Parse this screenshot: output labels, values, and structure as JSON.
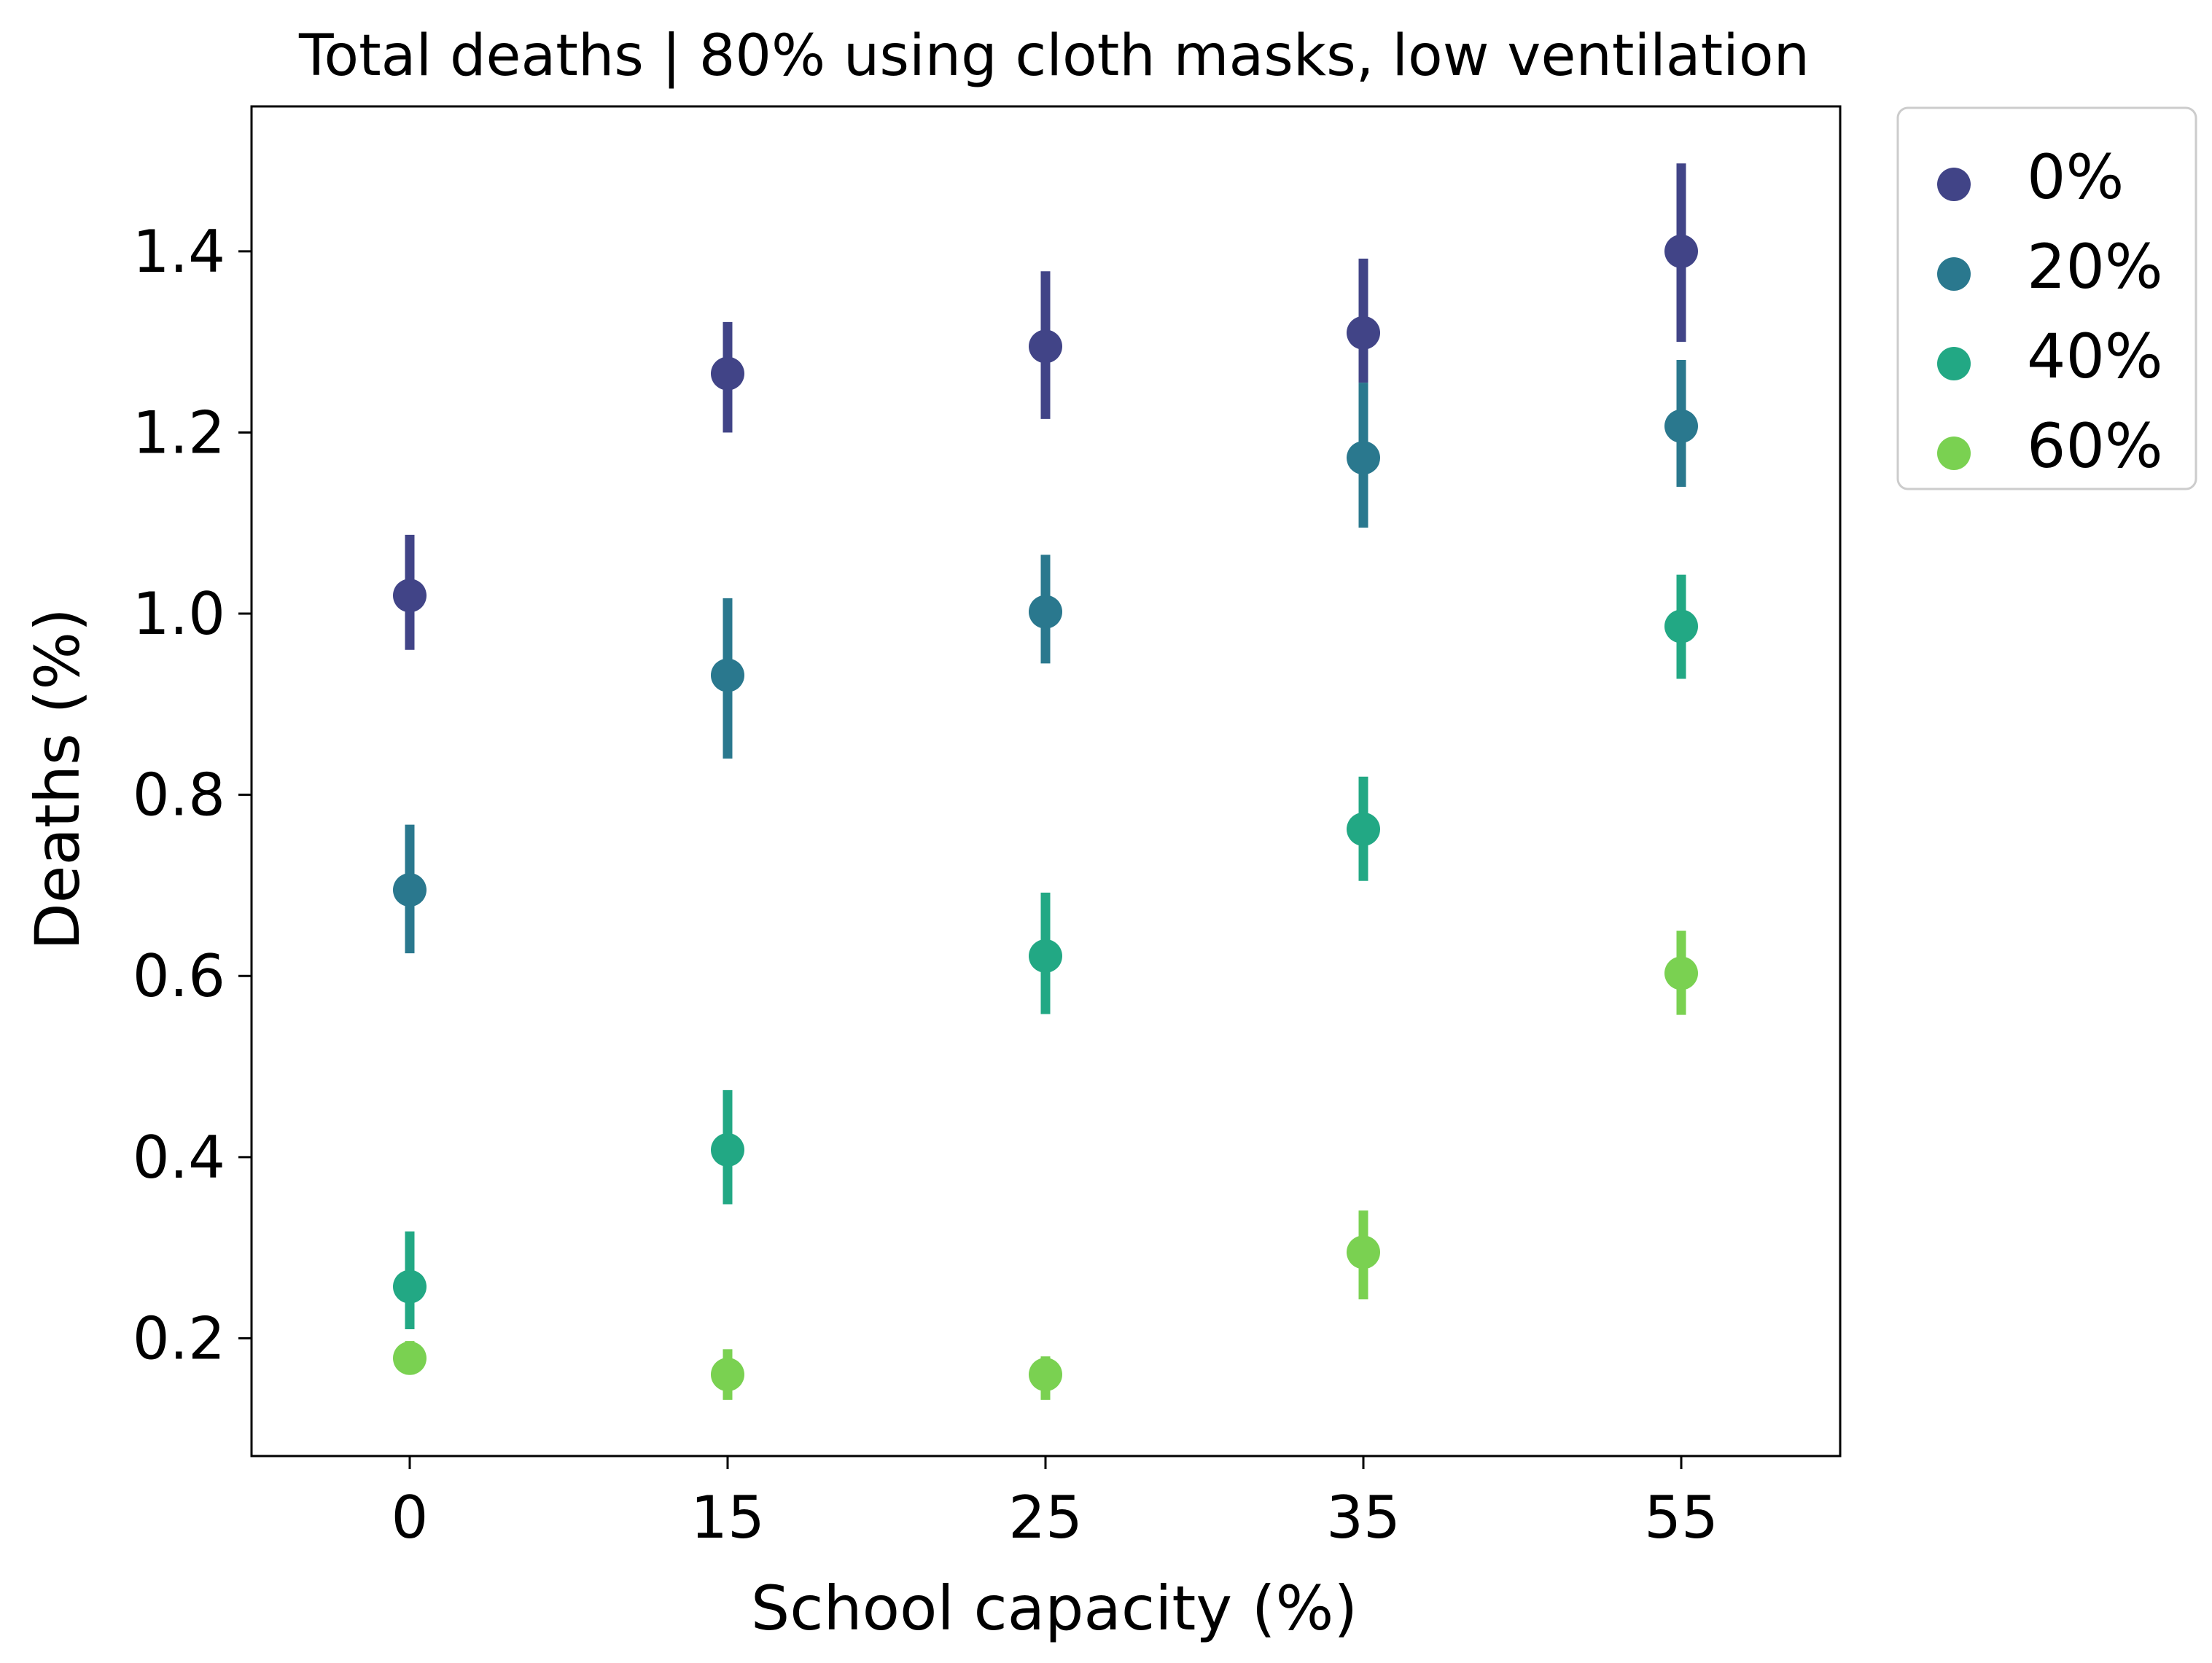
{
  "chart_data": {
    "type": "scatter",
    "title": "Total deaths | 80% using cloth masks, low ventilation",
    "xlabel": "School capacity (%)",
    "ylabel": "Deaths (%)",
    "categories": [
      "0",
      "15",
      "25",
      "35",
      "55"
    ],
    "y_ticks": [
      "0.2",
      "0.4",
      "0.6",
      "0.8",
      "1.0",
      "1.2",
      "1.4"
    ],
    "ylim": [
      0.07,
      1.56
    ],
    "grid": false,
    "legend_position": "outside-top-right",
    "series": [
      {
        "name": "0%",
        "color": "#414487",
        "values": [
          1.02,
          1.265,
          1.295,
          1.31,
          1.4
        ],
        "err_low": [
          0.96,
          1.2,
          1.215,
          1.255,
          1.3
        ],
        "err_high": [
          1.087,
          1.322,
          1.378,
          1.392,
          1.497
        ]
      },
      {
        "name": "20%",
        "color": "#2A788E",
        "values": [
          0.695,
          0.932,
          1.002,
          1.172,
          1.207
        ],
        "err_low": [
          0.625,
          0.84,
          0.945,
          1.095,
          1.14
        ],
        "err_high": [
          0.767,
          1.017,
          1.065,
          1.255,
          1.28
        ]
      },
      {
        "name": "40%",
        "color": "#22A884",
        "values": [
          0.257,
          0.408,
          0.622,
          0.762,
          0.986
        ],
        "err_low": [
          0.21,
          0.348,
          0.558,
          0.705,
          0.928
        ],
        "err_high": [
          0.318,
          0.474,
          0.692,
          0.82,
          1.043
        ]
      },
      {
        "name": "60%",
        "color": "#7AD151",
        "values": [
          0.178,
          0.16,
          0.16,
          0.295,
          0.603
        ],
        "err_low": [
          0.16,
          0.132,
          0.132,
          0.243,
          0.557
        ],
        "err_high": [
          0.197,
          0.188,
          0.18,
          0.341,
          0.65
        ]
      }
    ]
  }
}
